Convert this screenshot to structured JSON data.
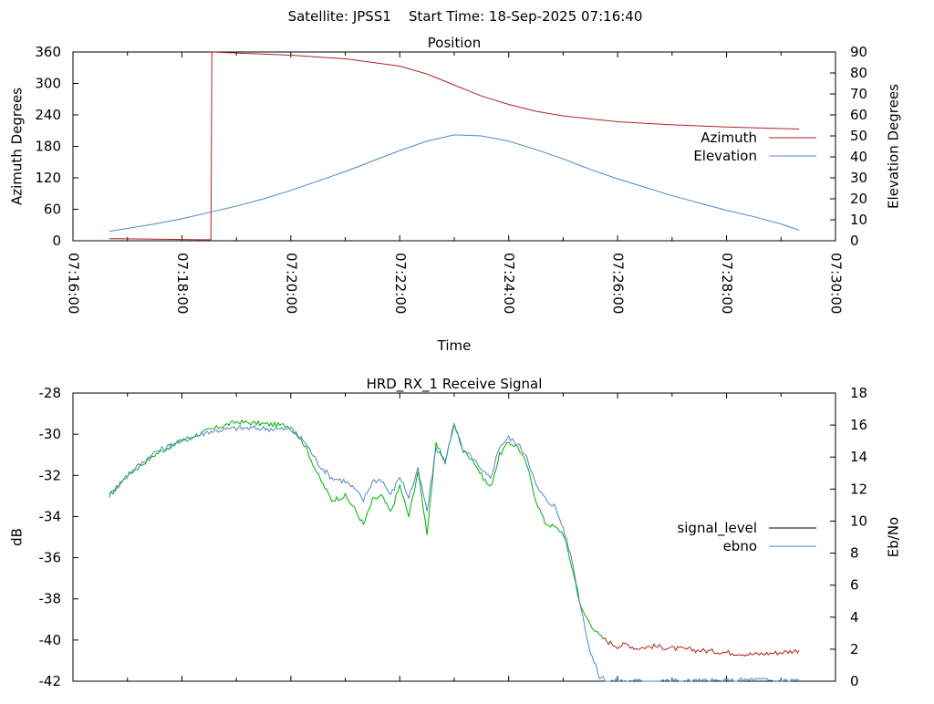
{
  "header": {
    "title": "Satellite: JPSS1    Start Time: 18-Sep-2025 07:16:40"
  },
  "chart_data": [
    {
      "type": "line",
      "title": "Position",
      "xlabel": "Time",
      "ylabel": "Azimuth Degrees",
      "y2label": "Elevation Degrees",
      "xlim": [
        "07:16:00",
        "07:30:00"
      ],
      "x_ticks": [
        "07:16:00",
        "07:18:00",
        "07:20:00",
        "07:22:00",
        "07:24:00",
        "07:26:00",
        "07:28:00",
        "07:30:00"
      ],
      "ylim": [
        0,
        360
      ],
      "y_ticks": [
        "0",
        "60",
        "120",
        "180",
        "240",
        "300",
        "360"
      ],
      "y2lim": [
        0,
        90
      ],
      "y2_ticks": [
        "0",
        "10",
        "20",
        "30",
        "40",
        "50",
        "60",
        "70",
        "80",
        "90"
      ],
      "legend": "right",
      "grid": false,
      "series": [
        {
          "name": "Azimuth",
          "axis": "y",
          "color": "#b22222",
          "x": [
            "07:16:40",
            "07:17:30",
            "07:18:20",
            "07:18:32",
            "07:18:33",
            "07:19:00",
            "07:20:00",
            "07:21:00",
            "07:22:00",
            "07:22:30",
            "07:23:00",
            "07:23:30",
            "07:24:00",
            "07:24:30",
            "07:25:00",
            "07:26:00",
            "07:27:00",
            "07:28:00",
            "07:29:00",
            "07:29:20"
          ],
          "values": [
            4,
            3,
            2,
            2,
            360,
            358,
            354,
            347,
            333,
            318,
            297,
            276,
            260,
            247,
            238,
            227,
            221,
            217,
            214,
            213
          ]
        },
        {
          "name": "Elevation",
          "axis": "y2",
          "color": "#4f86c6",
          "x": [
            "07:16:40",
            "07:17:30",
            "07:18:00",
            "07:18:30",
            "07:19:00",
            "07:19:30",
            "07:20:00",
            "07:20:30",
            "07:21:00",
            "07:21:30",
            "07:22:00",
            "07:22:30",
            "07:23:00",
            "07:23:30",
            "07:24:00",
            "07:24:30",
            "07:25:00",
            "07:25:30",
            "07:26:00",
            "07:26:30",
            "07:27:00",
            "07:27:30",
            "07:28:00",
            "07:28:30",
            "07:29:00",
            "07:29:20"
          ],
          "values": [
            4.5,
            8,
            10.5,
            13.5,
            16.5,
            20,
            24,
            28.5,
            33,
            38,
            43,
            47.5,
            50.5,
            50,
            47.5,
            43.5,
            39,
            34,
            29.5,
            25.5,
            21.5,
            18,
            14.5,
            11.5,
            8,
            5
          ]
        }
      ]
    },
    {
      "type": "line",
      "title": "HRD_RX_1 Receive Signal",
      "xlabel": "",
      "ylabel": "dB",
      "y2label": "Eb/No",
      "xlim": [
        "07:16:00",
        "07:30:00"
      ],
      "ylim": [
        -42,
        -28
      ],
      "y_ticks": [
        "-42",
        "-40",
        "-38",
        "-36",
        "-34",
        "-32",
        "-30",
        "-28"
      ],
      "y2lim": [
        0,
        18
      ],
      "y2_ticks": [
        "0",
        "2",
        "4",
        "6",
        "8",
        "10",
        "12",
        "14",
        "16",
        "18"
      ],
      "legend": "right",
      "grid": false,
      "series": [
        {
          "name": "signal_level",
          "axis": "y",
          "color": "#00b000",
          "color_low": "#b22222",
          "low_threshold": -40,
          "x": [
            "07:16:40",
            "07:17:00",
            "07:17:30",
            "07:18:00",
            "07:18:30",
            "07:19:00",
            "07:19:30",
            "07:20:00",
            "07:20:15",
            "07:20:30",
            "07:20:45",
            "07:21:00",
            "07:21:10",
            "07:21:20",
            "07:21:30",
            "07:21:40",
            "07:21:50",
            "07:22:00",
            "07:22:10",
            "07:22:20",
            "07:22:30",
            "07:22:40",
            "07:22:50",
            "07:23:00",
            "07:23:10",
            "07:23:20",
            "07:23:30",
            "07:23:40",
            "07:23:50",
            "07:24:00",
            "07:24:10",
            "07:24:20",
            "07:24:30",
            "07:24:40",
            "07:24:50",
            "07:25:00",
            "07:25:10",
            "07:25:20",
            "07:25:30",
            "07:25:40",
            "07:25:50",
            "07:26:00",
            "07:26:10",
            "07:26:20",
            "07:26:40",
            "07:27:00",
            "07:27:30",
            "07:28:00",
            "07:28:30",
            "07:29:00",
            "07:29:20"
          ],
          "values": [
            -33.0,
            -32.0,
            -31.0,
            -30.3,
            -29.8,
            -29.4,
            -29.5,
            -29.6,
            -30.5,
            -32.0,
            -33.2,
            -33.0,
            -33.6,
            -34.4,
            -33.2,
            -33.0,
            -33.8,
            -32.5,
            -34.0,
            -31.8,
            -34.8,
            -30.5,
            -31.3,
            -29.5,
            -30.8,
            -31.2,
            -32.0,
            -32.6,
            -31.0,
            -30.4,
            -30.6,
            -31.5,
            -33.2,
            -34.3,
            -34.5,
            -34.8,
            -36.5,
            -38.5,
            -39.2,
            -39.8,
            -40.1,
            -40.3,
            -40.2,
            -40.4,
            -40.3,
            -40.4,
            -40.5,
            -40.6,
            -40.7,
            -40.6,
            -40.5
          ]
        },
        {
          "name": "ebno",
          "axis": "y2",
          "color": "#4f86c6",
          "x": [
            "07:16:40",
            "07:17:00",
            "07:17:30",
            "07:18:00",
            "07:18:30",
            "07:19:00",
            "07:19:30",
            "07:20:00",
            "07:20:15",
            "07:20:30",
            "07:20:45",
            "07:21:00",
            "07:21:10",
            "07:21:20",
            "07:21:30",
            "07:21:40",
            "07:21:50",
            "07:22:00",
            "07:22:10",
            "07:22:20",
            "07:22:30",
            "07:22:40",
            "07:22:50",
            "07:23:00",
            "07:23:10",
            "07:23:20",
            "07:23:30",
            "07:23:40",
            "07:23:50",
            "07:24:00",
            "07:24:10",
            "07:24:20",
            "07:24:30",
            "07:24:40",
            "07:24:50",
            "07:25:00",
            "07:25:10",
            "07:25:20",
            "07:25:30",
            "07:25:40",
            "07:25:50",
            "07:26:00",
            "07:26:10",
            "07:26:20",
            "07:26:40",
            "07:27:00",
            "07:27:30",
            "07:28:00",
            "07:28:30",
            "07:29:00",
            "07:29:20"
          ],
          "values": [
            11.6,
            12.9,
            14.3,
            15.0,
            15.6,
            15.8,
            15.8,
            15.7,
            15.0,
            13.6,
            12.7,
            12.5,
            12.0,
            11.3,
            12.5,
            12.6,
            11.6,
            12.8,
            11.5,
            13.2,
            10.6,
            14.6,
            13.7,
            16.1,
            14.3,
            14.0,
            13.1,
            12.7,
            14.7,
            15.2,
            14.8,
            14.1,
            12.2,
            11.4,
            11.0,
            9.6,
            7.5,
            4.5,
            1.8,
            0.3,
            0.0,
            0.0,
            0.0,
            0.0,
            0.0,
            0.0,
            0.0,
            0.0,
            0.1,
            0.0,
            0.1
          ]
        }
      ]
    }
  ]
}
